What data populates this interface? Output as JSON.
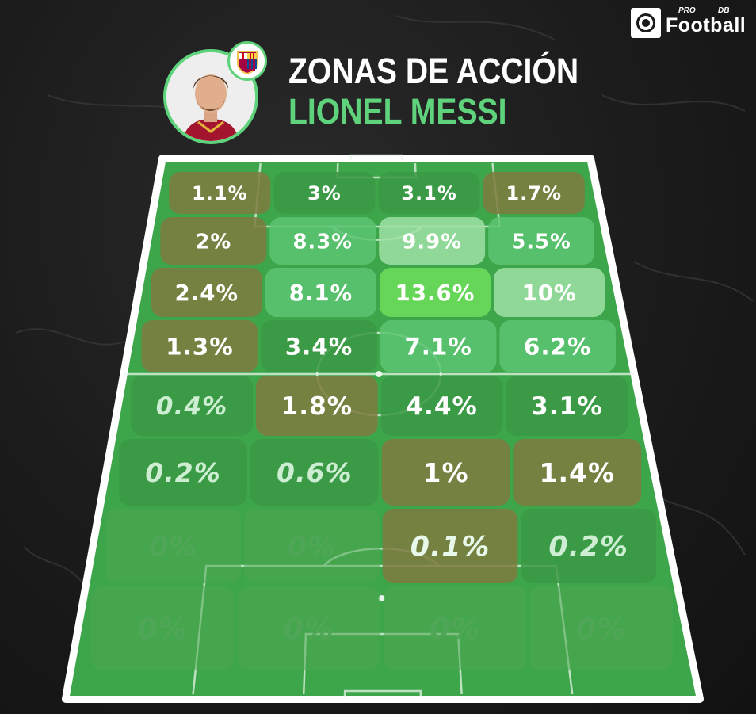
{
  "brand": {
    "pro": "PRO",
    "db": "DB",
    "name": "Football"
  },
  "header": {
    "line1": "ZONAS DE ACCIÓN",
    "line2": "LIONEL MESSI"
  },
  "colors": {
    "accent": "#5fd27c",
    "pitch": "#3ea64a",
    "cell_high": "#6dde5c",
    "cell_light": "#9fe0a5",
    "cell_mid": "#5cc472",
    "cell_green": "#3b9844",
    "cell_low": "#7e7a3e",
    "cell_empty": "#4aa650"
  },
  "chart_data": {
    "type": "heatmap",
    "title": "ZONAS DE ACCIÓN",
    "subtitle": "LIONEL MESSI",
    "rows": 8,
    "cols": 4,
    "unit": "%",
    "values": [
      [
        1.1,
        3,
        3.1,
        1.7
      ],
      [
        2,
        8.3,
        9.9,
        5.5
      ],
      [
        2.4,
        8.1,
        13.6,
        10
      ],
      [
        1.3,
        3.4,
        7.1,
        6.2
      ],
      [
        0.4,
        1.8,
        4.4,
        3.1
      ],
      [
        0.2,
        0.6,
        1,
        1.4
      ],
      [
        0,
        0,
        0.1,
        0.2
      ],
      [
        0,
        0,
        0,
        0
      ]
    ],
    "labels": [
      [
        "1.1%",
        "3%",
        "3.1%",
        "1.7%"
      ],
      [
        "2%",
        "8.3%",
        "9.9%",
        "5.5%"
      ],
      [
        "2.4%",
        "8.1%",
        "13.6%",
        "10%"
      ],
      [
        "1.3%",
        "3.4%",
        "7.1%",
        "6.2%"
      ],
      [
        "0.4%",
        "1.8%",
        "4.4%",
        "3.1%"
      ],
      [
        "0.2%",
        "0.6%",
        "1%",
        "1.4%"
      ],
      [
        "0%",
        "0%",
        "0.1%",
        "0.2%"
      ],
      [
        "0%",
        "0%",
        "0%",
        "0%"
      ]
    ],
    "cell_colors": [
      [
        "#7e7a3e",
        "#3b9844",
        "#3b9844",
        "#7e7a3e"
      ],
      [
        "#7e7a3e",
        "#5cc472",
        "#9fe0a5",
        "#5cc472"
      ],
      [
        "#7e7a3e",
        "#5cc472",
        "#6dde5c",
        "#9fe0a5"
      ],
      [
        "#7e7a3e",
        "#3b9844",
        "#5cc472",
        "#5cc472"
      ],
      [
        "#3b9844",
        "#7e7a3e",
        "#3b9844",
        "#3b9844"
      ],
      [
        "#3b9844",
        "#3b9844",
        "#7e7a3e",
        "#7e7a3e"
      ],
      [
        "#4aa650",
        "#4aa650",
        "#7e7a3e",
        "#3b9844"
      ],
      [
        "#4aa650",
        "#4aa650",
        "#4aa650",
        "#4aa650"
      ]
    ],
    "text_colors": [
      [
        "#ffffff",
        "#ffffff",
        "#ffffff",
        "#ffffff"
      ],
      [
        "#ffffff",
        "#ffffff",
        "#ffffff",
        "#ffffff"
      ],
      [
        "#ffffff",
        "#ffffff",
        "#ffffff",
        "#ffffff"
      ],
      [
        "#ffffff",
        "#ffffff",
        "#ffffff",
        "#ffffff"
      ],
      [
        "#cdeed2",
        "#ffffff",
        "#ffffff",
        "#ffffff"
      ],
      [
        "#cdeed2",
        "#cdeed2",
        "#ffffff",
        "#ffffff"
      ],
      [
        "#4fa657",
        "#4fa657",
        "#e8f8ea",
        "#cdeed2"
      ],
      [
        "#4fa657",
        "#4fa657",
        "#4fa657",
        "#4fa657"
      ]
    ]
  }
}
